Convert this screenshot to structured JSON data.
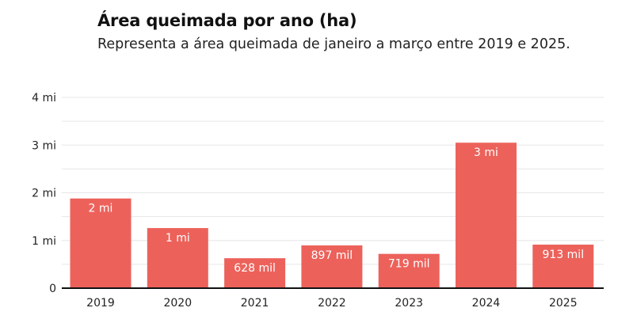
{
  "chart_data": {
    "type": "bar",
    "title": "Área queimada por ano (ha)",
    "subtitle": "Representa a área queimada de janeiro a março entre 2019 e 2025.",
    "categories": [
      "2019",
      "2020",
      "2021",
      "2022",
      "2023",
      "2024",
      "2025"
    ],
    "values": [
      1880000,
      1260000,
      628000,
      897000,
      719000,
      3050000,
      913000
    ],
    "data_labels": [
      "2 mi",
      "1 mi",
      "628 mil",
      "897 mil",
      "719 mil",
      "3 mi",
      "913 mil"
    ],
    "ylim": [
      0,
      4000000
    ],
    "yticks": [
      0,
      1000000,
      2000000,
      3000000,
      4000000
    ],
    "ytick_labels": [
      "0",
      "1 mi",
      "2 mi",
      "3 mi",
      "4 mi"
    ],
    "grid": true,
    "bar_color": "#ec625b",
    "xlabel": "",
    "ylabel": ""
  }
}
